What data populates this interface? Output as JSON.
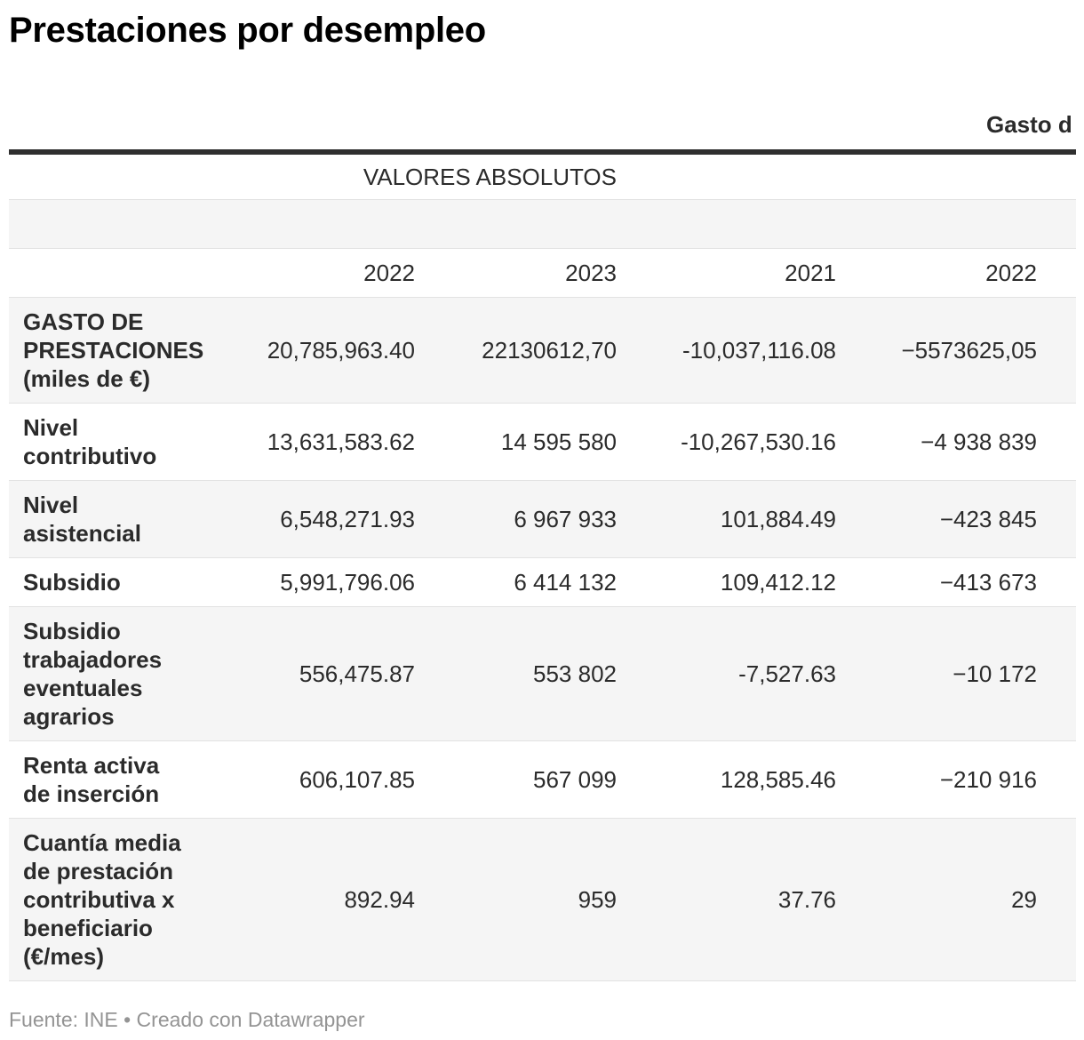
{
  "chart_data": {
    "type": "table",
    "title": "Prestaciones por desempleo",
    "group_header_left": "VALORES ABSOLUTOS",
    "group_header_right_clipped": "Gasto d",
    "columns": [
      "2022",
      "2023",
      "2021",
      "2022"
    ],
    "rows": [
      {
        "label": "GASTO DE PRESTACIONES (miles de €)",
        "values": [
          "20,785,963.40",
          "22130612,70",
          "-10,037,116.08",
          "−5573625,05"
        ]
      },
      {
        "label": "Nivel contributivo",
        "values": [
          "13,631,583.62",
          "14 595 580",
          "-10,267,530.16",
          "−4 938 839"
        ]
      },
      {
        "label": "Nivel asistencial",
        "values": [
          "6,548,271.93",
          "6 967 933",
          "101,884.49",
          "−423 845"
        ]
      },
      {
        "label": "Subsidio",
        "values": [
          "5,991,796.06",
          "6 414 132",
          "109,412.12",
          "−413 673"
        ]
      },
      {
        "label": "Subsidio trabajadores eventuales agrarios",
        "values": [
          "556,475.87",
          "553 802",
          "-7,527.63",
          "−10 172"
        ]
      },
      {
        "label": "Renta activa de inserción",
        "values": [
          "606,107.85",
          "567 099",
          "128,585.46",
          "−210 916"
        ]
      },
      {
        "label": "Cuantía media de prestación contributiva x beneficiario (€/mes)",
        "values": [
          "892.94",
          "959",
          "37.76",
          "29"
        ]
      }
    ],
    "layout_hints": {
      "striped_rows": true,
      "first_body_row_striped": true,
      "numeric_alignment": "right",
      "right_side_clipped": true
    }
  },
  "footer": {
    "text": "Fuente: INE • Creado con Datawrapper"
  },
  "colors": {
    "stripe": "#f5f5f5",
    "row-border": "#e2e2e2",
    "header-border": "#2f2f2f",
    "text": "#2b2b2b",
    "title": "#000000",
    "footer-text": "#949494"
  }
}
